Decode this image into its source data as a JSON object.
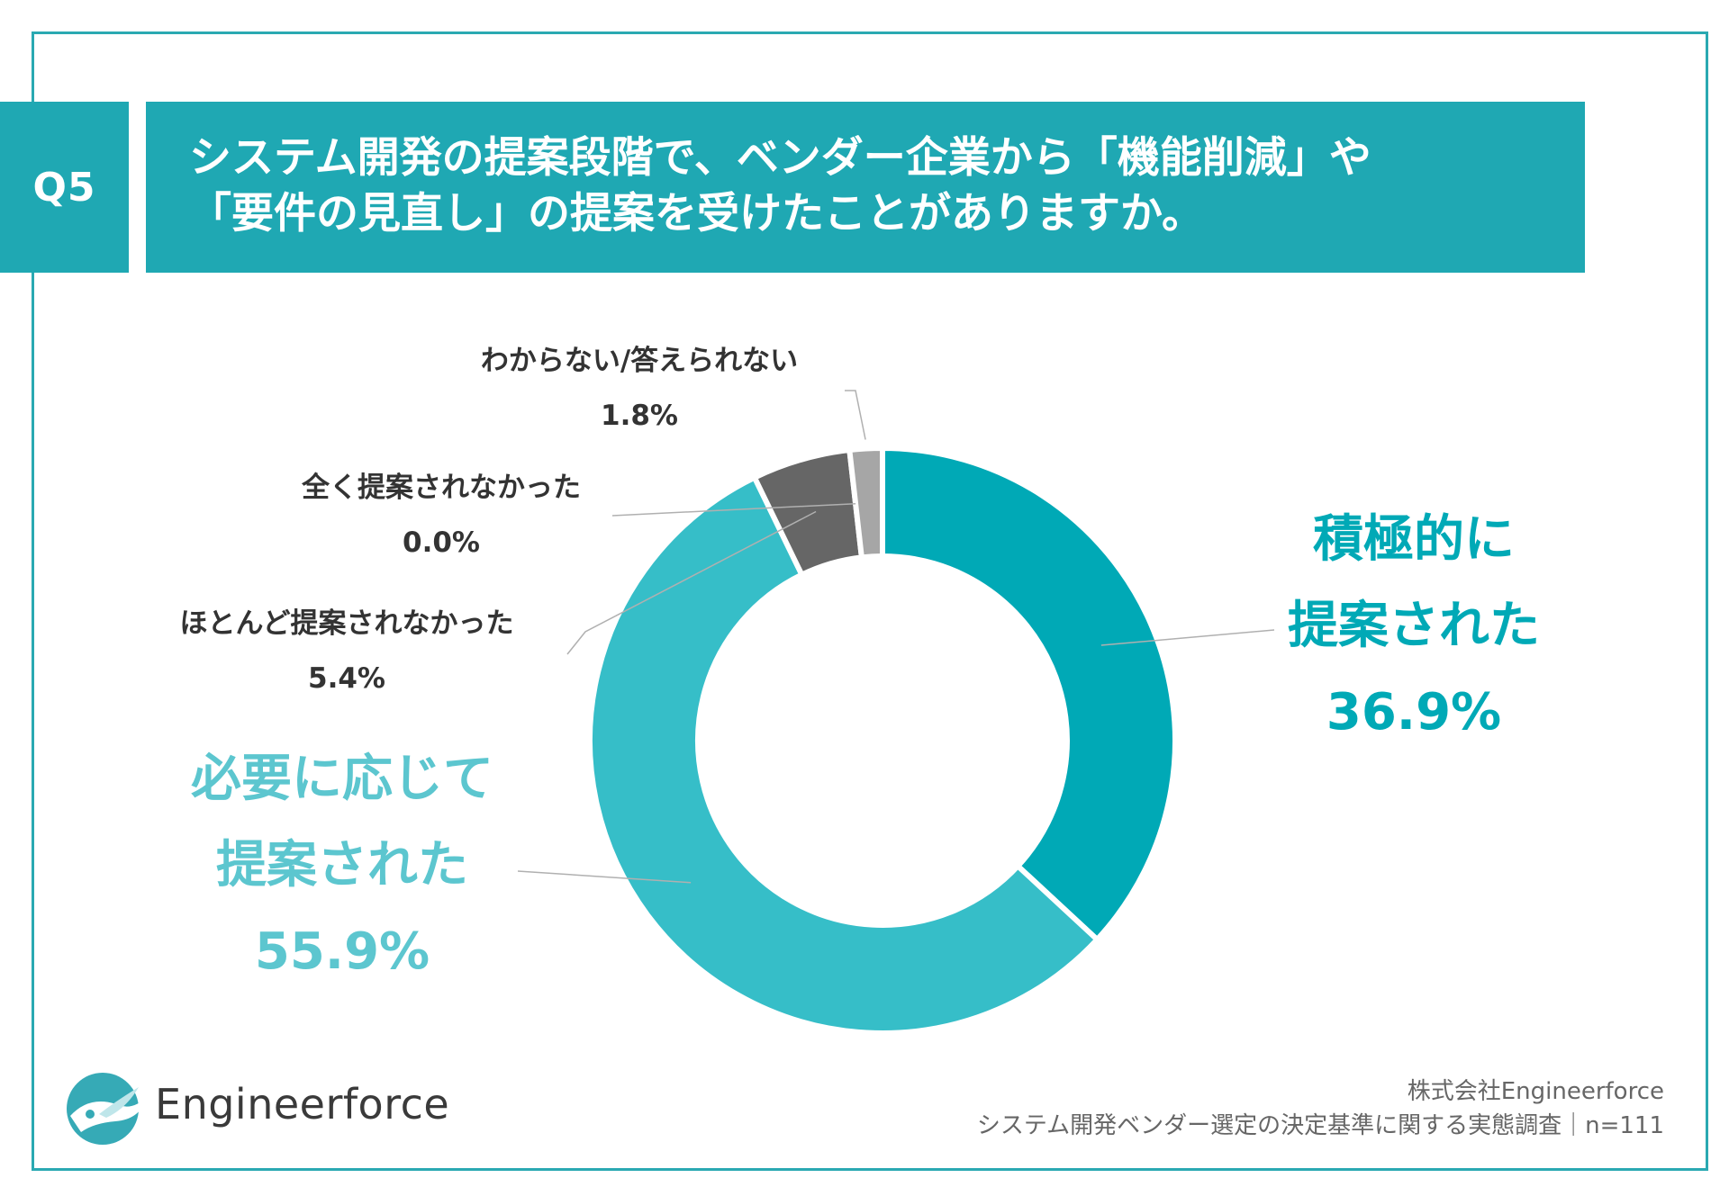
{
  "question": {
    "badge": "Q5",
    "title_lines": [
      "システム開発の提案段階で、ベンダー企業から「機能削減」や",
      "「要件の見直し」の提案を受けたことがありますか。"
    ]
  },
  "chart_data": {
    "type": "pie",
    "donut": true,
    "slices": [
      {
        "label_lines": [
          "積極的に",
          "提案された"
        ],
        "value": 36.9,
        "value_text": "36.9%",
        "color": "#00a9b6"
      },
      {
        "label_lines": [
          "必要に応じて",
          "提案された"
        ],
        "value": 55.9,
        "value_text": "55.9%",
        "color": "#36bec8"
      },
      {
        "label_lines": [
          "ほとんど提案されなかった"
        ],
        "value": 5.4,
        "value_text": "5.4%",
        "color": "#666666"
      },
      {
        "label_lines": [
          "全く提案されなかった"
        ],
        "value": 0.0,
        "value_text": "0.0%",
        "color": "#404040"
      },
      {
        "label_lines": [
          "わからない/答えられない"
        ],
        "value": 1.8,
        "value_text": "1.8%",
        "color": "#a6a6a6"
      }
    ]
  },
  "colors": {
    "frame": "#2aa9b2",
    "header": "#1fa8b3",
    "accent_dark": "#00a9b6",
    "accent_light": "#5cc6cf",
    "leader_line": "#b0b0b0"
  },
  "logo": {
    "text": "Engineerforce",
    "icon": "bird-wave-icon"
  },
  "source": {
    "company": "株式会社Engineerforce",
    "survey": "システム開発ベンダー選定の決定基準に関する実態調査｜n=111"
  }
}
